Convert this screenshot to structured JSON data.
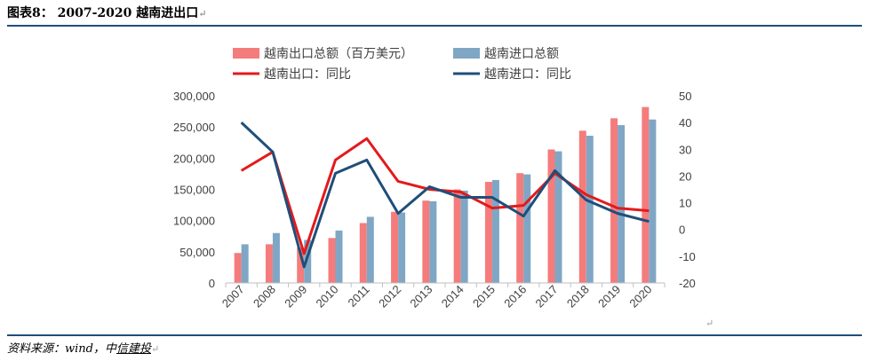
{
  "header": {
    "title": "图表8： 2007-2020 越南进出口",
    "mark": "↵"
  },
  "source": {
    "prefix": "资料来源：wind，中",
    "link": "信建投",
    "mark": "↵"
  },
  "stray_mark": "↵",
  "chart_data": {
    "type": "bar",
    "categories": [
      "2007",
      "2008",
      "2009",
      "2010",
      "2011",
      "2012",
      "2013",
      "2014",
      "2015",
      "2016",
      "2017",
      "2018",
      "2019",
      "2020"
    ],
    "series": [
      {
        "name": "越南出口总额（百万美元）",
        "type": "bar",
        "axis": "left",
        "color": "#f47c7c",
        "values": [
          48000,
          62000,
          57000,
          72000,
          96000,
          114000,
          132000,
          150000,
          162000,
          176000,
          214000,
          244000,
          264000,
          282000
        ]
      },
      {
        "name": "越南进口总额",
        "type": "bar",
        "axis": "left",
        "color": "#7fa7c5",
        "values": [
          62000,
          80000,
          69000,
          84000,
          106000,
          113000,
          131000,
          148000,
          165000,
          174000,
          211000,
          236000,
          253000,
          262000
        ]
      },
      {
        "name": "越南出口：同比",
        "type": "line",
        "axis": "right",
        "color": "#e31a1c",
        "values": [
          22,
          29,
          -9,
          26,
          34,
          18,
          15,
          14,
          8,
          9,
          21,
          13,
          8,
          7
        ]
      },
      {
        "name": "越南进口：同比",
        "type": "line",
        "axis": "right",
        "color": "#1f4e79",
        "values": [
          40,
          29,
          -14,
          21,
          26,
          6,
          16,
          12,
          12,
          5,
          22,
          11,
          6,
          3
        ]
      }
    ],
    "left_axis": {
      "ylim": [
        0,
        300000
      ],
      "ticks": [
        "0",
        "50,000",
        "100,000",
        "150,000",
        "200,000",
        "250,000",
        "300,000"
      ]
    },
    "right_axis": {
      "ylim": [
        -20,
        50
      ],
      "ticks": [
        "-20",
        "-10",
        "0",
        "10",
        "20",
        "30",
        "40",
        "50"
      ]
    },
    "legend_placement": "top",
    "grid": false
  }
}
